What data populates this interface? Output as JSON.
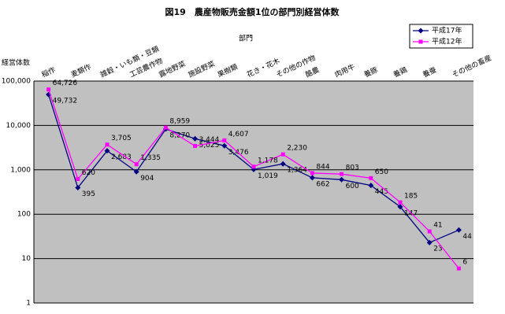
{
  "chart_data": {
    "type": "line",
    "title": "図19　農産物販売金額1位の部門別経営体数",
    "x_label": "部門",
    "y_label": "経営体数",
    "categories": [
      "稲作",
      "麦類作",
      "雑穀・いも類・豆類",
      "工芸農作物",
      "露地野菜",
      "施設野菜",
      "果樹類",
      "花き・花木",
      "その他の作物",
      "酪農",
      "肉用牛",
      "養豚",
      "養鶏",
      "養蚕",
      "その他の畜産"
    ],
    "series": [
      {
        "name": "平成17年",
        "color": "#000080",
        "marker": "diamond",
        "values": [
          49732,
          395,
          2683,
          904,
          8270,
          5025,
          3476,
          1019,
          1364,
          662,
          600,
          445,
          147,
          23,
          44
        ],
        "value_labels": [
          "49,732",
          "395",
          "2,683",
          "904",
          "8,270",
          "5,025",
          "3,476",
          "1,019",
          "1,364",
          "662",
          "600",
          "445",
          "147",
          "23",
          "44"
        ]
      },
      {
        "name": "平成12年",
        "color": "#ff00ff",
        "marker": "square",
        "values": [
          64726,
          620,
          3705,
          1335,
          8959,
          3444,
          4607,
          1178,
          2230,
          844,
          803,
          650,
          185,
          41,
          6
        ],
        "value_labels": [
          "64,726",
          "620",
          "3,705",
          "1,335",
          "8,959",
          "3,444",
          "4,607",
          "1,178",
          "2,230",
          "844",
          "803",
          "650",
          "185",
          "41",
          "6"
        ]
      }
    ],
    "log_scale": true,
    "ylim": [
      1,
      100000
    ],
    "yticks": [
      1,
      10,
      100,
      {
        "value": 1000,
        "label": "1,000"
      },
      {
        "value": 10000,
        "label": "10,000"
      },
      {
        "value": 100000,
        "label": "100,000"
      }
    ],
    "grid": true,
    "legend": "top-right"
  }
}
